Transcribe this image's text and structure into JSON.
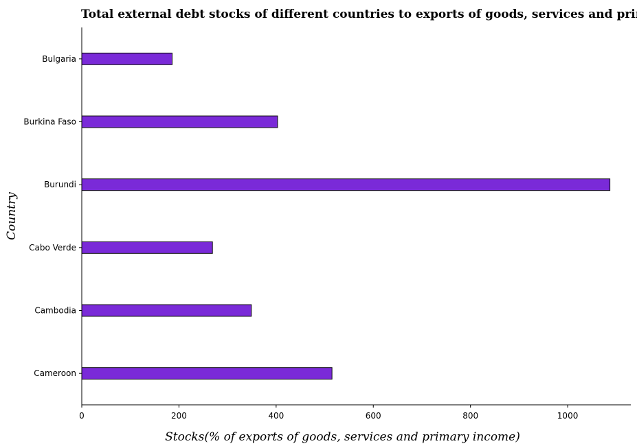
{
  "chart_data": {
    "type": "bar",
    "orientation": "horizontal",
    "title": "Total external debt stocks of different countries to exports of goods, services and primary income",
    "xlabel": "Stocks(% of exports of goods, services and primary income)",
    "ylabel": "Country",
    "categories": [
      "Bulgaria",
      "Burkina Faso",
      "Burundi",
      "Cabo Verde",
      "Cambodia",
      "Cameroon"
    ],
    "values": [
      186,
      403,
      1087,
      269,
      349,
      515
    ],
    "xlim": [
      0,
      1130
    ],
    "xticks": [
      0,
      200,
      400,
      600,
      800,
      1000
    ],
    "xtick_labels": [
      "0",
      "200",
      "400",
      "600",
      "800",
      "1000"
    ],
    "grid": false,
    "bar_color": "#7a2ad8"
  }
}
